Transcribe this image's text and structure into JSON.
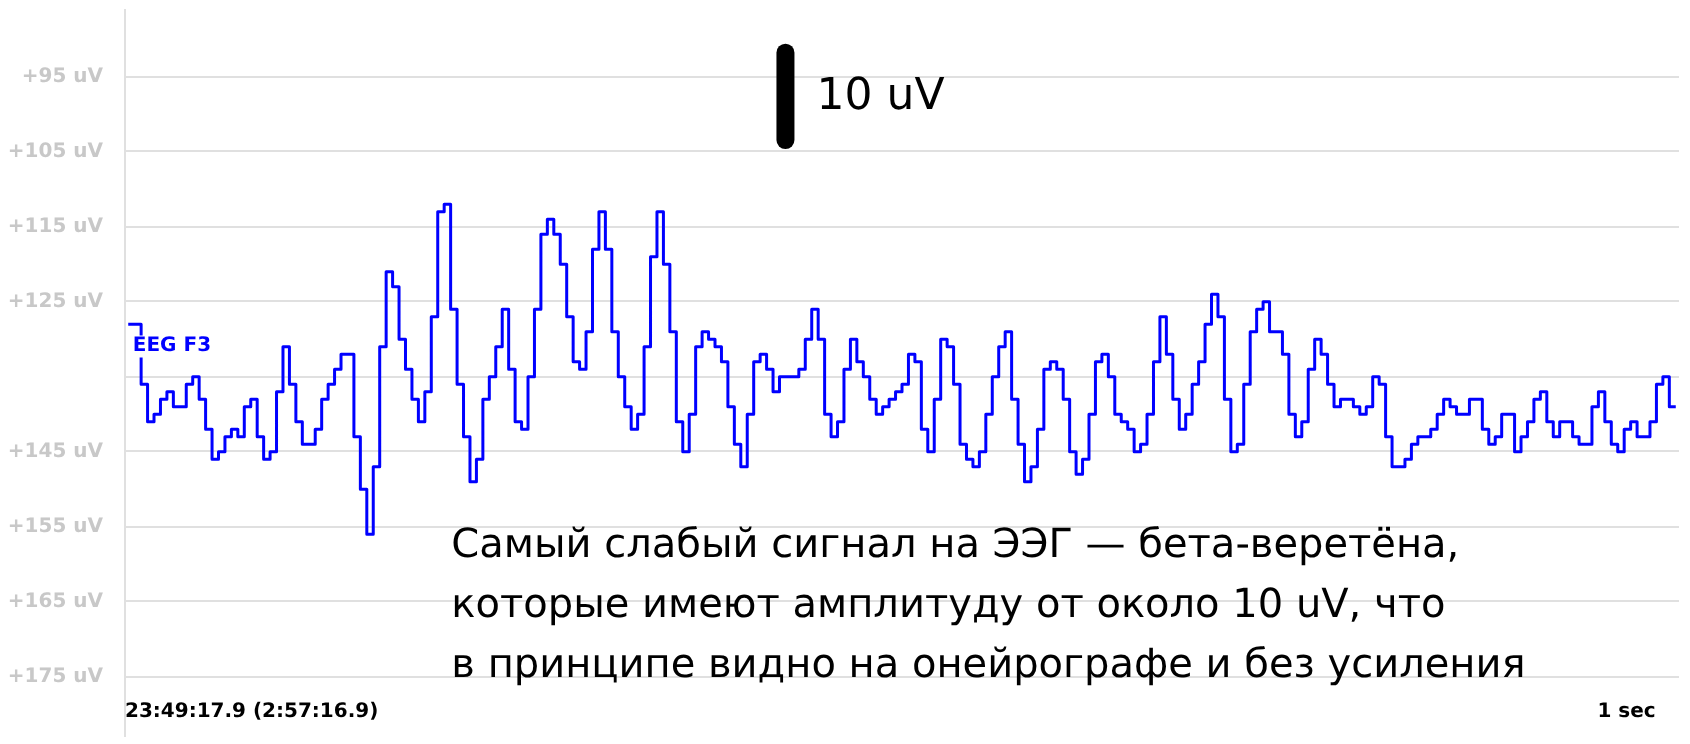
{
  "chart_data": {
    "type": "step",
    "ylim": [
      183,
      86
    ],
    "yticks": [
      {
        "value": 95,
        "label": "+95 uV"
      },
      {
        "value": 105,
        "label": "+105 uV"
      },
      {
        "value": 115,
        "label": "+115 uV"
      },
      {
        "value": 125,
        "label": "+125 uV"
      },
      {
        "value": 135,
        "label": null
      },
      {
        "value": 145,
        "label": "+145 uV"
      },
      {
        "value": 155,
        "label": "+155 uV"
      },
      {
        "value": 165,
        "label": "+165 uV"
      },
      {
        "value": 175,
        "label": "+175 uV"
      }
    ],
    "categories": [
      null,
      null,
      null,
      null,
      null,
      null,
      null,
      null,
      null,
      null,
      null,
      null,
      null,
      null,
      null,
      null,
      null,
      null,
      null,
      null,
      null,
      null,
      null,
      null,
      null,
      null,
      null,
      null,
      null,
      null,
      null,
      null,
      null,
      null,
      null,
      null,
      null,
      null,
      null,
      null,
      null,
      null,
      null,
      null,
      null,
      null,
      null,
      null,
      null,
      null,
      null,
      null,
      null,
      null,
      null,
      null,
      null,
      null,
      null,
      null,
      null,
      null,
      null,
      null,
      null,
      null,
      null,
      null,
      null,
      null,
      null,
      null,
      null,
      null,
      null,
      null,
      null,
      null,
      null,
      null,
      null,
      null,
      null,
      null,
      null,
      null,
      null,
      null,
      null,
      null,
      null,
      null,
      null,
      null,
      null,
      null,
      null,
      null,
      null,
      null,
      null,
      null,
      null,
      null,
      null,
      null,
      null,
      null,
      null,
      null,
      null,
      null,
      null,
      null,
      null,
      null,
      null,
      null,
      null,
      null,
      null,
      null,
      null,
      null,
      null,
      null,
      null,
      null,
      null,
      null,
      null,
      null,
      null,
      null,
      null,
      null,
      null,
      null,
      null,
      null,
      null,
      null,
      null,
      null,
      null,
      null,
      null,
      null,
      null,
      null,
      null,
      null,
      null,
      null,
      null,
      null,
      null,
      null,
      null,
      null,
      null,
      null,
      null,
      null,
      null,
      null,
      null,
      null,
      null,
      null,
      null,
      null,
      null,
      null,
      null,
      null,
      null,
      null,
      null,
      null,
      null,
      null,
      null,
      null,
      null,
      null,
      null,
      null,
      null,
      null,
      null,
      null,
      null,
      null,
      null,
      null,
      null,
      null,
      null,
      null,
      null,
      null,
      null,
      null,
      null,
      null,
      null,
      null,
      null,
      null,
      null,
      null,
      null,
      null,
      null,
      null,
      null,
      null,
      null,
      null,
      null,
      null,
      null,
      null,
      null,
      null,
      null,
      null,
      null,
      null,
      null,
      null,
      null,
      null,
      null,
      null,
      null,
      null,
      null,
      null,
      null
    ],
    "tick_labels": "y",
    "grid": "y",
    "marker": "none",
    "line_style": "solid",
    "annotations": [
      "10 uV",
      "Самый слабый сигнал на ЭЭГ — бета-веретёна,\nкоторые имеют амплитуду от около 10 uV, что\nв принципе видно на онейрографе и без усиления",
      "23:49:17.9 (2:57:16.9)",
      "1 sec"
    ],
    "series": [
      {
        "name": "EEG F3",
        "color": "#0000ff",
        "values": [
          128,
          128,
          136,
          141,
          140,
          138,
          137,
          139,
          139,
          136,
          135,
          138,
          142,
          146,
          145,
          143,
          142,
          143,
          139,
          138,
          143,
          146,
          145,
          137,
          131,
          136,
          141,
          144,
          144,
          142,
          138,
          136,
          134,
          132,
          132,
          143,
          150,
          156,
          147,
          131,
          121,
          123,
          130,
          134,
          138,
          141,
          137,
          127,
          113,
          112,
          126,
          136,
          143,
          149,
          146,
          138,
          135,
          131,
          126,
          134,
          141,
          142,
          135,
          126,
          116,
          114,
          116,
          120,
          127,
          133,
          134,
          129,
          118,
          113,
          118,
          129,
          135,
          139,
          142,
          140,
          131,
          119,
          113,
          120,
          129,
          141,
          145,
          140,
          131,
          129,
          130,
          131,
          133,
          139,
          144,
          147,
          140,
          133,
          132,
          134,
          137,
          135,
          135,
          135,
          134,
          130,
          126,
          130,
          140,
          143,
          141,
          134,
          130,
          133,
          135,
          138,
          140,
          139,
          138,
          137,
          136,
          132,
          133,
          142,
          145,
          138,
          130,
          131,
          136,
          144,
          146,
          147,
          145,
          140,
          135,
          131,
          129,
          138,
          144,
          149,
          147,
          142,
          134,
          133,
          134,
          138,
          145,
          148,
          146,
          140,
          133,
          132,
          135,
          140,
          141,
          142,
          145,
          144,
          140,
          133,
          127,
          132,
          138,
          142,
          140,
          136,
          133,
          128,
          124,
          127,
          138,
          145,
          144,
          136,
          129,
          126,
          125,
          129,
          129,
          132,
          140,
          143,
          141,
          134,
          130,
          132,
          136,
          139,
          138,
          138,
          139,
          140,
          139,
          135,
          136,
          143,
          147,
          147,
          146,
          144,
          143,
          143,
          142,
          140,
          138,
          139,
          140,
          140,
          138,
          138,
          142,
          144,
          143,
          140,
          140,
          145,
          143,
          141,
          138,
          137,
          141,
          143,
          141,
          141,
          143,
          144,
          144,
          139,
          137,
          141,
          144,
          145,
          142,
          141,
          143,
          143,
          141,
          136,
          135,
          139,
          139
        ]
      }
    ]
  }
}
